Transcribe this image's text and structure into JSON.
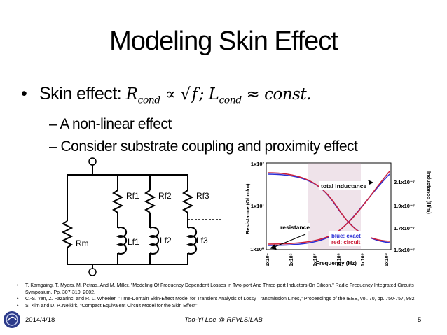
{
  "slide": {
    "title": "Modeling Skin Effect",
    "bullet_prefix": "Skin effect: ",
    "bullet_math": "R_cond ∝ √f; L_cond ≈ const.",
    "sub_bullets": [
      "– A non-linear effect",
      "– Consider substrate coupling and proximity effect"
    ]
  },
  "circuit": {
    "labels": {
      "rm": "Rm",
      "rf1": "Rf1",
      "rf2": "Rf2",
      "rf3": "Rf3",
      "lf1": "Lf1",
      "lf2": "Lf2",
      "lf3": "Lf3"
    }
  },
  "plot": {
    "xlabel": "Frequency (Hz)",
    "ylabel_left": "Resistance (Ohm/m)",
    "ylabel_right": "Inductance (H/m)",
    "yticks_left": [
      "1x10²",
      "1x10¹",
      "1x10⁰"
    ],
    "yticks_right": [
      "2.1x10⁻⁷",
      "1.9x10⁻⁷",
      "1.7x10⁻⁷",
      "1.5x10⁻⁷"
    ],
    "xticks": [
      "1x10⁵",
      "1x10⁶",
      "1x10⁷",
      "1x10⁸",
      "1x10⁹",
      "5x10⁹"
    ],
    "annotations": {
      "total_inductance": "total inductance",
      "resistance": "resistance",
      "legend_blue": "blue: exact",
      "legend_red": "red: circuit"
    },
    "colors": {
      "blue": "#2b2fd6",
      "red": "#cc1f3a",
      "highlight": "#efe3ea"
    }
  },
  "references": [
    "T. Kamgaing, T. Myers, M. Petras, And M. Miller, \"Modeling Of Frequency Dependent Losses In Two-port And Three-port Inductors On Silicon,\" Radio Frequency Integrated Circuits Symposium, Pp. 307-310, 2002.",
    "C.-S. Yen, Z. Fazarinc, and R. L. Wheeler, \"Time-Domain Skin-Effect Model for Transient Analysis of Lossy Transmission Lines,\" Proceedings of the IEEE, vol. 70, pp. 750-757, 982",
    "S. Kim and D. P..Neikirk, \"Compact Equivalent Circuit Model for the Skin Effect\""
  ],
  "footer": {
    "date": "2014/4/18",
    "center": "Tao-Yi Lee @ RFVLSILAB",
    "page": "5"
  }
}
